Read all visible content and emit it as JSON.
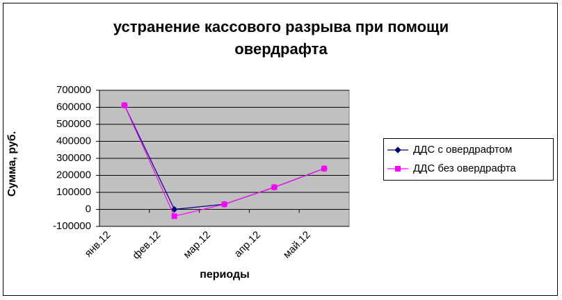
{
  "chart_data": {
    "type": "line",
    "title": [
      "устранение кассового разрыва при помощи",
      "овердрафта"
    ],
    "y_label": "Сумма, руб.",
    "x_label": "периоды",
    "categories": [
      "янв.12",
      "фев.12",
      "мар.12",
      "апр.12",
      "май.12"
    ],
    "series": [
      {
        "name": "ДДС с овердрафтом",
        "color": "#000080",
        "marker": "diamond",
        "values": [
          612000,
          0,
          30000,
          130000,
          240000
        ]
      },
      {
        "name": "ДДС без овердрафта",
        "color": "#FF00FF",
        "marker": "square",
        "values": [
          612000,
          -40000,
          30000,
          130000,
          240000
        ]
      }
    ],
    "ylim": [
      -100000,
      700000
    ],
    "yticks": [
      -100000,
      0,
      100000,
      200000,
      300000,
      400000,
      500000,
      600000,
      700000
    ],
    "grid": true,
    "legend": "right"
  }
}
